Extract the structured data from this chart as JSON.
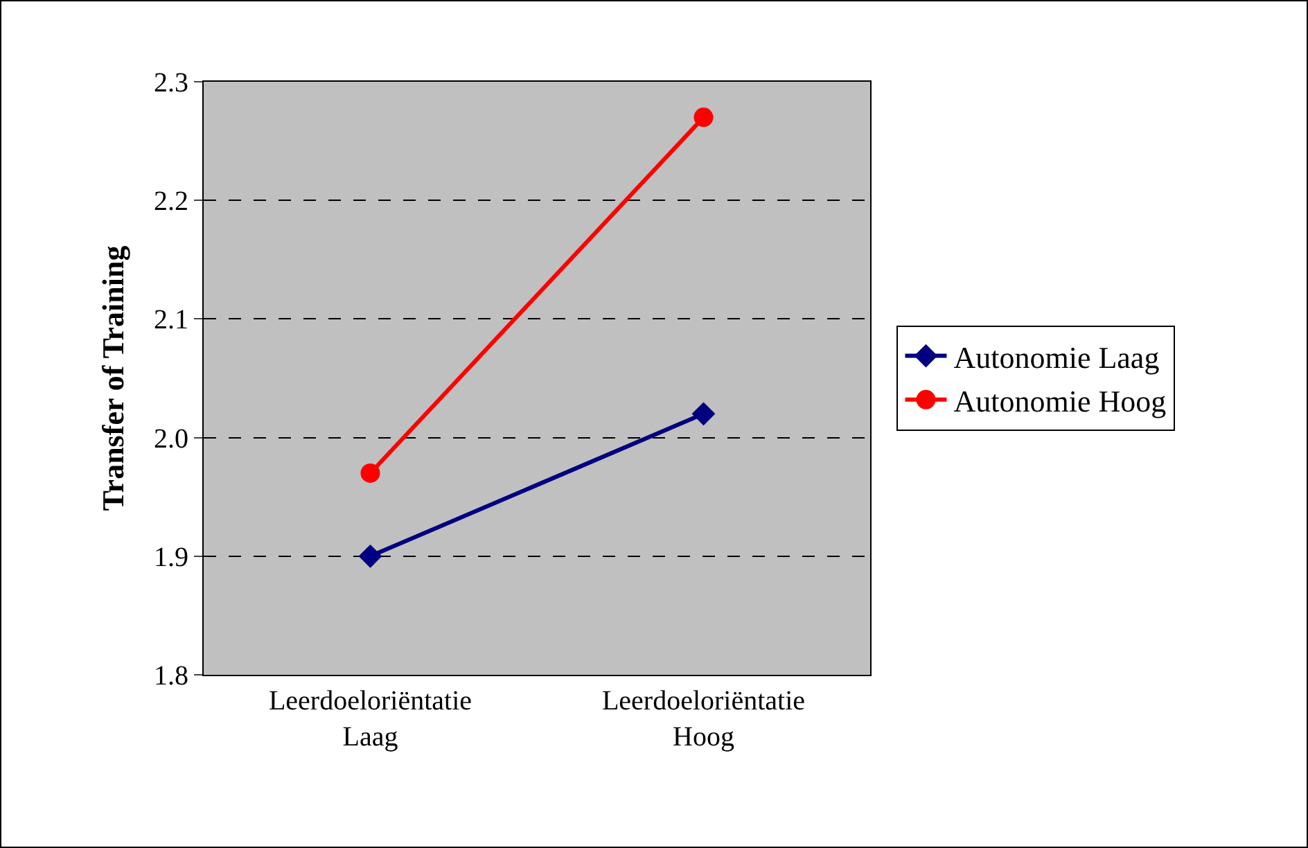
{
  "chart_data": {
    "type": "line",
    "ylabel": "Transfer of Training",
    "categories": [
      "Leerdoeloriëntatie\nLaag",
      "Leerdoeloriëntatie\nHoog"
    ],
    "series": [
      {
        "name": "Autonomie Laag",
        "color": "#000080",
        "values": [
          1.9,
          2.02
        ],
        "marker": "diamond"
      },
      {
        "name": "Autonomie Hoog",
        "color": "#ff0000",
        "values": [
          1.97,
          2.27
        ],
        "marker": "circle"
      }
    ],
    "ylim": [
      1.8,
      2.3
    ],
    "yticks": [
      {
        "value": 1.8,
        "label": "1.8"
      },
      {
        "value": 1.9,
        "label": "1.9"
      },
      {
        "value": 2.0,
        "label": "2.0"
      },
      {
        "value": 2.1,
        "label": "2.1"
      },
      {
        "value": 2.2,
        "label": "2.2"
      },
      {
        "value": 2.3,
        "label": "2.3"
      }
    ],
    "grid": "y",
    "legend": "right",
    "line_style": "solid"
  }
}
